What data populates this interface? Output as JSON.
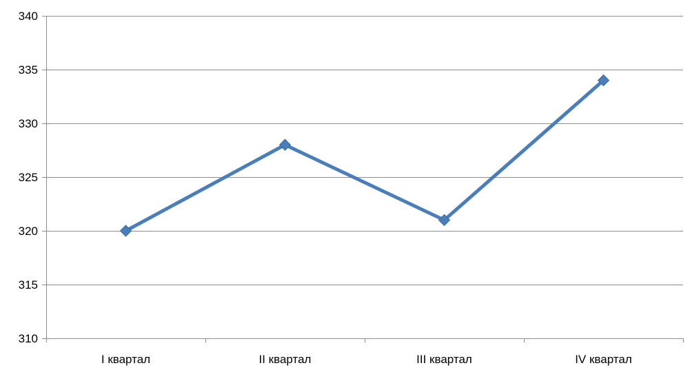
{
  "chart_data": {
    "type": "line",
    "categories": [
      "I квартал",
      "II квартал",
      "III квартал",
      "IV квартал"
    ],
    "series": [
      {
        "values": [
          320,
          328,
          321,
          334
        ],
        "color": "#4A7EBB",
        "marker": "diamond"
      }
    ],
    "title": "",
    "xlabel": "",
    "ylabel": "",
    "ylim": [
      310,
      340
    ],
    "yticks": [
      310,
      315,
      320,
      325,
      330,
      335,
      340
    ],
    "grid": true,
    "legend": "none"
  }
}
